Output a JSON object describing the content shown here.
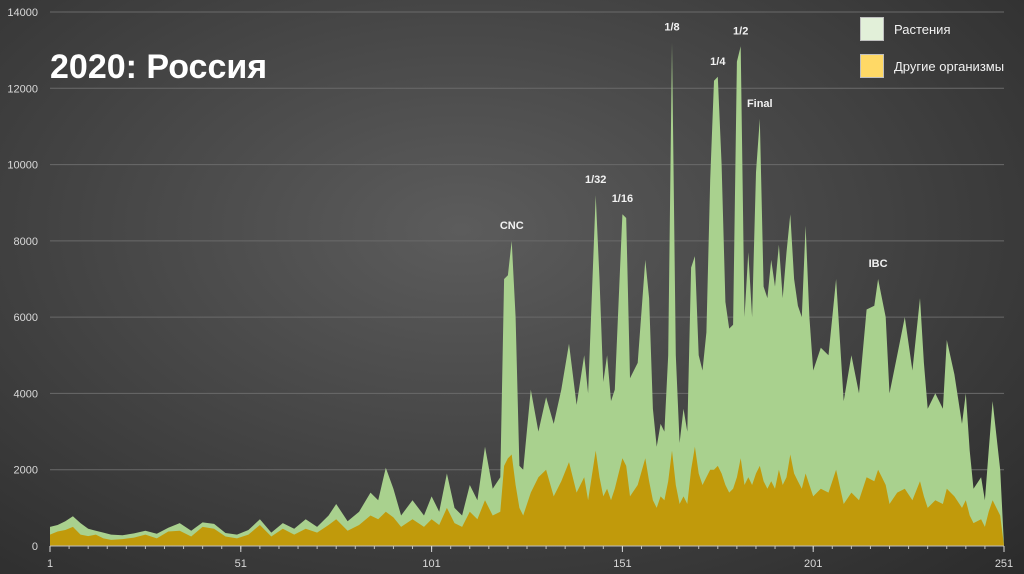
{
  "chart_data": {
    "type": "area",
    "title": "2020: Россия",
    "xlabel": "",
    "ylabel": "",
    "xlim": [
      1,
      251
    ],
    "ylim": [
      0,
      14000
    ],
    "x_tick_labels": [
      "1",
      "51",
      "101",
      "151",
      "201",
      "251"
    ],
    "y_tick_labels": [
      "0",
      "2000",
      "4000",
      "6000",
      "8000",
      "10000",
      "12000",
      "14000"
    ],
    "grid": "horizontal",
    "legend_position": "top-right",
    "stacked": false,
    "series": [
      {
        "name": "Растения",
        "color": "#a9d18e",
        "points": [
          [
            1,
            500
          ],
          [
            3,
            550
          ],
          [
            5,
            650
          ],
          [
            7,
            780
          ],
          [
            9,
            600
          ],
          [
            11,
            450
          ],
          [
            13,
            400
          ],
          [
            15,
            350
          ],
          [
            17,
            300
          ],
          [
            20,
            280
          ],
          [
            23,
            330
          ],
          [
            26,
            400
          ],
          [
            29,
            320
          ],
          [
            32,
            480
          ],
          [
            35,
            600
          ],
          [
            38,
            400
          ],
          [
            41,
            620
          ],
          [
            44,
            580
          ],
          [
            47,
            340
          ],
          [
            50,
            300
          ],
          [
            53,
            420
          ],
          [
            56,
            700
          ],
          [
            59,
            350
          ],
          [
            62,
            600
          ],
          [
            65,
            450
          ],
          [
            68,
            700
          ],
          [
            71,
            500
          ],
          [
            74,
            800
          ],
          [
            76,
            1100
          ],
          [
            79,
            650
          ],
          [
            82,
            900
          ],
          [
            85,
            1400
          ],
          [
            87,
            1200
          ],
          [
            89,
            2050
          ],
          [
            91,
            1500
          ],
          [
            93,
            800
          ],
          [
            96,
            1200
          ],
          [
            99,
            800
          ],
          [
            101,
            1300
          ],
          [
            103,
            900
          ],
          [
            105,
            1900
          ],
          [
            107,
            1000
          ],
          [
            109,
            800
          ],
          [
            111,
            1600
          ],
          [
            113,
            1200
          ],
          [
            115,
            2600
          ],
          [
            117,
            1500
          ],
          [
            119,
            1800
          ],
          [
            120,
            7000
          ],
          [
            121,
            7100
          ],
          [
            122,
            8000
          ],
          [
            123,
            6000
          ],
          [
            124,
            2100
          ],
          [
            125,
            2000
          ],
          [
            127,
            4100
          ],
          [
            129,
            3000
          ],
          [
            131,
            3900
          ],
          [
            133,
            3200
          ],
          [
            135,
            4100
          ],
          [
            137,
            5300
          ],
          [
            139,
            3700
          ],
          [
            141,
            5000
          ],
          [
            142,
            4000
          ],
          [
            144,
            9200
          ],
          [
            145,
            7000
          ],
          [
            146,
            4300
          ],
          [
            147,
            5000
          ],
          [
            148,
            3800
          ],
          [
            149,
            4100
          ],
          [
            151,
            8700
          ],
          [
            152,
            8600
          ],
          [
            153,
            4400
          ],
          [
            155,
            4800
          ],
          [
            157,
            7500
          ],
          [
            158,
            6500
          ],
          [
            159,
            3600
          ],
          [
            160,
            2600
          ],
          [
            161,
            3200
          ],
          [
            162,
            3000
          ],
          [
            163,
            5000
          ],
          [
            164,
            13200
          ],
          [
            165,
            5000
          ],
          [
            166,
            2700
          ],
          [
            167,
            3600
          ],
          [
            168,
            3000
          ],
          [
            169,
            7300
          ],
          [
            170,
            7600
          ],
          [
            171,
            5000
          ],
          [
            172,
            4600
          ],
          [
            173,
            5600
          ],
          [
            174,
            9600
          ],
          [
            175,
            12200
          ],
          [
            176,
            12300
          ],
          [
            177,
            10000
          ],
          [
            178,
            6400
          ],
          [
            179,
            5700
          ],
          [
            180,
            5800
          ],
          [
            181,
            12700
          ],
          [
            182,
            13100
          ],
          [
            183,
            6000
          ],
          [
            184,
            7700
          ],
          [
            185,
            6000
          ],
          [
            186,
            9800
          ],
          [
            187,
            11200
          ],
          [
            188,
            6800
          ],
          [
            189,
            6500
          ],
          [
            190,
            7500
          ],
          [
            191,
            6800
          ],
          [
            192,
            7900
          ],
          [
            193,
            6500
          ],
          [
            194,
            7700
          ],
          [
            195,
            8700
          ],
          [
            196,
            7000
          ],
          [
            197,
            6300
          ],
          [
            198,
            6000
          ],
          [
            199,
            8400
          ],
          [
            200,
            6000
          ],
          [
            201,
            4600
          ],
          [
            203,
            5200
          ],
          [
            205,
            5000
          ],
          [
            207,
            7000
          ],
          [
            209,
            3800
          ],
          [
            211,
            5000
          ],
          [
            213,
            4000
          ],
          [
            215,
            6200
          ],
          [
            217,
            6300
          ],
          [
            218,
            7000
          ],
          [
            219,
            6500
          ],
          [
            220,
            6000
          ],
          [
            221,
            4000
          ],
          [
            223,
            5000
          ],
          [
            225,
            6000
          ],
          [
            227,
            4600
          ],
          [
            229,
            6500
          ],
          [
            230,
            4800
          ],
          [
            231,
            3600
          ],
          [
            233,
            4000
          ],
          [
            235,
            3600
          ],
          [
            236,
            5400
          ],
          [
            238,
            4500
          ],
          [
            240,
            3200
          ],
          [
            241,
            4000
          ],
          [
            242,
            2500
          ],
          [
            243,
            1500
          ],
          [
            245,
            1800
          ],
          [
            246,
            1200
          ],
          [
            247,
            2500
          ],
          [
            248,
            3800
          ],
          [
            250,
            2000
          ],
          [
            251,
            0
          ]
        ]
      },
      {
        "name": "Другие организмы",
        "color": "#c19a0b",
        "points": [
          [
            1,
            300
          ],
          [
            3,
            380
          ],
          [
            5,
            420
          ],
          [
            7,
            500
          ],
          [
            9,
            300
          ],
          [
            11,
            260
          ],
          [
            13,
            300
          ],
          [
            15,
            200
          ],
          [
            17,
            160
          ],
          [
            20,
            180
          ],
          [
            23,
            220
          ],
          [
            26,
            300
          ],
          [
            29,
            200
          ],
          [
            32,
            380
          ],
          [
            35,
            400
          ],
          [
            38,
            250
          ],
          [
            41,
            500
          ],
          [
            44,
            450
          ],
          [
            47,
            250
          ],
          [
            50,
            200
          ],
          [
            53,
            300
          ],
          [
            56,
            550
          ],
          [
            59,
            250
          ],
          [
            62,
            450
          ],
          [
            65,
            300
          ],
          [
            68,
            450
          ],
          [
            71,
            350
          ],
          [
            74,
            550
          ],
          [
            76,
            700
          ],
          [
            79,
            400
          ],
          [
            82,
            550
          ],
          [
            85,
            800
          ],
          [
            87,
            700
          ],
          [
            89,
            900
          ],
          [
            91,
            750
          ],
          [
            93,
            500
          ],
          [
            96,
            700
          ],
          [
            99,
            500
          ],
          [
            101,
            700
          ],
          [
            103,
            550
          ],
          [
            105,
            1000
          ],
          [
            107,
            600
          ],
          [
            109,
            500
          ],
          [
            111,
            900
          ],
          [
            113,
            700
          ],
          [
            115,
            1200
          ],
          [
            117,
            800
          ],
          [
            119,
            900
          ],
          [
            120,
            2100
          ],
          [
            121,
            2300
          ],
          [
            122,
            2400
          ],
          [
            123,
            1600
          ],
          [
            124,
            1000
          ],
          [
            125,
            800
          ],
          [
            127,
            1400
          ],
          [
            129,
            1800
          ],
          [
            131,
            2000
          ],
          [
            133,
            1300
          ],
          [
            135,
            1700
          ],
          [
            137,
            2200
          ],
          [
            139,
            1400
          ],
          [
            141,
            1800
          ],
          [
            142,
            1200
          ],
          [
            144,
            2500
          ],
          [
            145,
            1800
          ],
          [
            146,
            1300
          ],
          [
            147,
            1500
          ],
          [
            148,
            1200
          ],
          [
            149,
            1500
          ],
          [
            151,
            2300
          ],
          [
            152,
            2100
          ],
          [
            153,
            1300
          ],
          [
            155,
            1600
          ],
          [
            157,
            2300
          ],
          [
            158,
            1700
          ],
          [
            159,
            1200
          ],
          [
            160,
            1000
          ],
          [
            161,
            1300
          ],
          [
            162,
            1200
          ],
          [
            163,
            1700
          ],
          [
            164,
            2500
          ],
          [
            165,
            1600
          ],
          [
            166,
            1100
          ],
          [
            167,
            1300
          ],
          [
            168,
            1100
          ],
          [
            169,
            2000
          ],
          [
            170,
            2600
          ],
          [
            171,
            1900
          ],
          [
            172,
            1600
          ],
          [
            173,
            1800
          ],
          [
            174,
            2000
          ],
          [
            175,
            2000
          ],
          [
            176,
            2100
          ],
          [
            177,
            1900
          ],
          [
            178,
            1600
          ],
          [
            179,
            1400
          ],
          [
            180,
            1500
          ],
          [
            181,
            1800
          ],
          [
            182,
            2300
          ],
          [
            183,
            1600
          ],
          [
            184,
            1800
          ],
          [
            185,
            1600
          ],
          [
            186,
            1900
          ],
          [
            187,
            2100
          ],
          [
            188,
            1700
          ],
          [
            189,
            1500
          ],
          [
            190,
            1700
          ],
          [
            191,
            1500
          ],
          [
            192,
            2000
          ],
          [
            193,
            1600
          ],
          [
            194,
            1800
          ],
          [
            195,
            2400
          ],
          [
            196,
            1900
          ],
          [
            197,
            1700
          ],
          [
            198,
            1500
          ],
          [
            199,
            1900
          ],
          [
            200,
            1600
          ],
          [
            201,
            1300
          ],
          [
            203,
            1500
          ],
          [
            205,
            1400
          ],
          [
            207,
            2000
          ],
          [
            209,
            1100
          ],
          [
            211,
            1400
          ],
          [
            213,
            1200
          ],
          [
            215,
            1800
          ],
          [
            217,
            1700
          ],
          [
            218,
            2000
          ],
          [
            219,
            1800
          ],
          [
            220,
            1600
          ],
          [
            221,
            1100
          ],
          [
            223,
            1400
          ],
          [
            225,
            1500
          ],
          [
            227,
            1200
          ],
          [
            229,
            1700
          ],
          [
            230,
            1300
          ],
          [
            231,
            1000
          ],
          [
            233,
            1200
          ],
          [
            235,
            1100
          ],
          [
            236,
            1500
          ],
          [
            238,
            1300
          ],
          [
            240,
            1000
          ],
          [
            241,
            1200
          ],
          [
            242,
            800
          ],
          [
            243,
            600
          ],
          [
            245,
            700
          ],
          [
            246,
            500
          ],
          [
            247,
            900
          ],
          [
            248,
            1200
          ],
          [
            250,
            800
          ],
          [
            251,
            0
          ]
        ]
      }
    ],
    "annotations": [
      {
        "text": "CNC",
        "x": 122,
        "y": 8000
      },
      {
        "text": "1/32",
        "x": 144,
        "y": 9200
      },
      {
        "text": "1/16",
        "x": 151,
        "y": 8700
      },
      {
        "text": "1/8",
        "x": 164,
        "y": 13200
      },
      {
        "text": "1/4",
        "x": 176,
        "y": 12300
      },
      {
        "text": "1/2",
        "x": 182,
        "y": 13100
      },
      {
        "text": "Final",
        "x": 187,
        "y": 11200
      },
      {
        "text": "IBC",
        "x": 218,
        "y": 7000
      }
    ]
  }
}
